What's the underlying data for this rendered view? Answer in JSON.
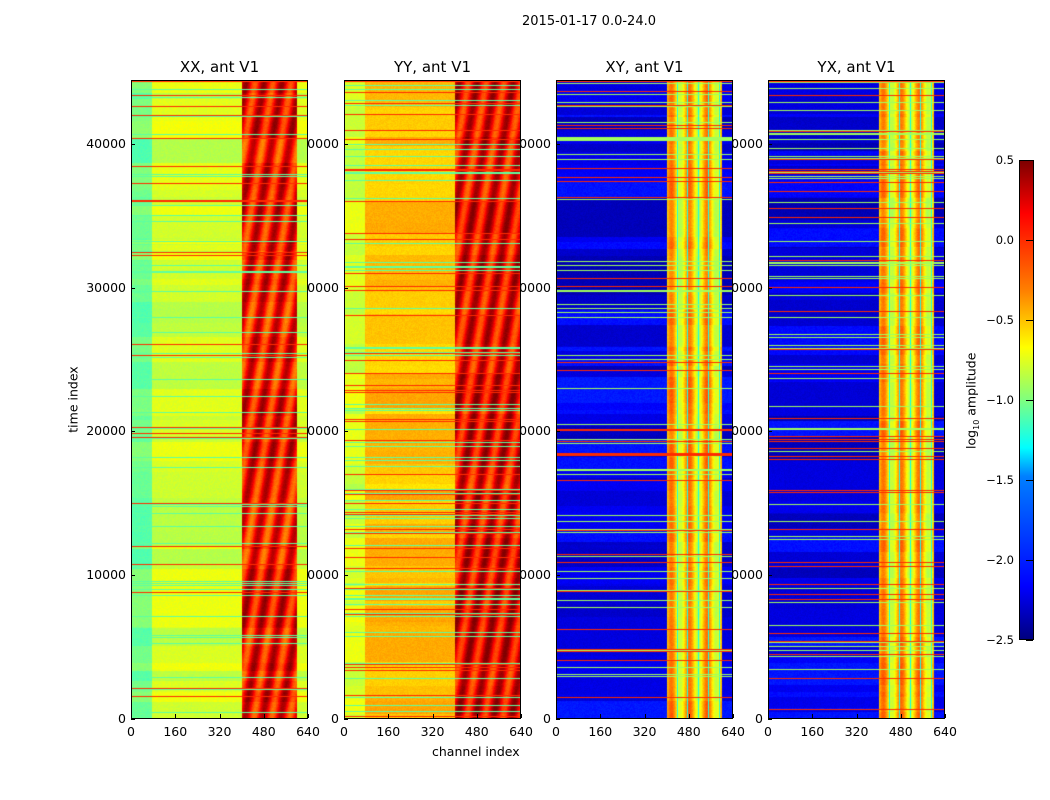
{
  "suptitle": "2015-01-17 0.0-24.0",
  "xlabel": "channel index",
  "ylabel": "time index",
  "colorbar": {
    "label_prefix": "log",
    "label_sub": "10",
    "label_suffix": " amplitude",
    "ticks": [
      "0.5",
      "0.0",
      "−0.5",
      "−1.0",
      "−1.5",
      "−2.0",
      "−2.5"
    ],
    "range": [
      -2.5,
      0.5
    ],
    "colormap": "jet"
  },
  "chart_data": {
    "type": "heatmap",
    "title": "2015-01-17 0.0-24.0",
    "xlabel": "channel index",
    "ylabel": "time index",
    "xlim": [
      0,
      640
    ],
    "ylim": [
      0,
      44450
    ],
    "x_ticks": [
      "0",
      "160",
      "320",
      "480",
      "640"
    ],
    "y_ticks": [
      "0",
      "10000",
      "20000",
      "30000",
      "40000"
    ],
    "y_tick_values": [
      0,
      10000,
      20000,
      30000,
      40000
    ],
    "x_tick_values": [
      0,
      160,
      320,
      480,
      640
    ],
    "color_range": [
      -2.5,
      0.5
    ],
    "panels": [
      {
        "title": "XX, ant V1",
        "kind": "auto",
        "base_log10_amplitude": -0.75,
        "band_channels": [
          400,
          600
        ],
        "band_log10_amplitude": 0.1
      },
      {
        "title": "YY, ant V1",
        "kind": "auto",
        "base_log10_amplitude": -0.45,
        "band_channels": [
          400,
          640
        ],
        "band_log10_amplitude": 0.15
      },
      {
        "title": "XY, ant V1",
        "kind": "cross",
        "base_log10_amplitude": -2.2,
        "band_channels": [
          400,
          600
        ],
        "band_log10_amplitude": -0.5
      },
      {
        "title": "YX, ant V1",
        "kind": "cross",
        "base_log10_amplitude": -2.2,
        "band_channels": [
          400,
          600
        ],
        "band_log10_amplitude": -0.5
      }
    ]
  }
}
